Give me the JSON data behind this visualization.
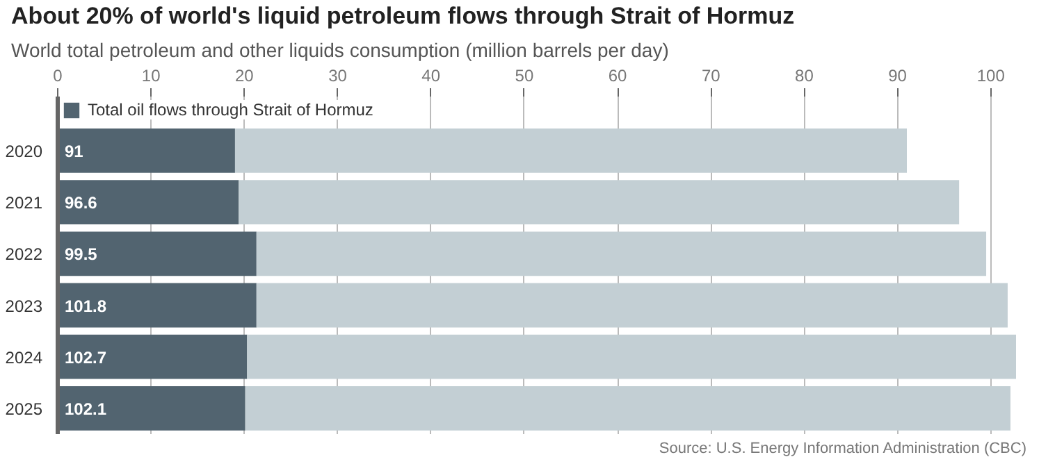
{
  "chart_data": {
    "type": "bar",
    "orientation": "horizontal",
    "stacked": true,
    "title": "About 20% of world's liquid petroleum flows through Strait of Hormuz",
    "subtitle": "World total petroleum and other liquids consumption (million barrels per day)",
    "categories": [
      "2020",
      "2021",
      "2022",
      "2023",
      "2024",
      "2025"
    ],
    "series": [
      {
        "name": "Total oil flows through Strait of Hormuz",
        "color": "#526470",
        "values": [
          19.0,
          19.4,
          21.3,
          21.3,
          20.3,
          20.1
        ]
      },
      {
        "color": "#c3cfd4",
        "values": [
          72.0,
          77.2,
          78.2,
          80.5,
          82.4,
          82.0
        ]
      }
    ],
    "totals": [
      "91",
      "96.6",
      "99.5",
      "101.8",
      "102.7",
      "102.1"
    ],
    "xlim": [
      0,
      102.7
    ],
    "xticks": [
      0,
      10,
      20,
      30,
      40,
      50,
      60,
      70,
      80,
      90,
      100
    ],
    "grid": "x",
    "legend": "top left",
    "annotations": [
      "Source: U.S. Energy Information Administration (CBC)"
    ]
  }
}
